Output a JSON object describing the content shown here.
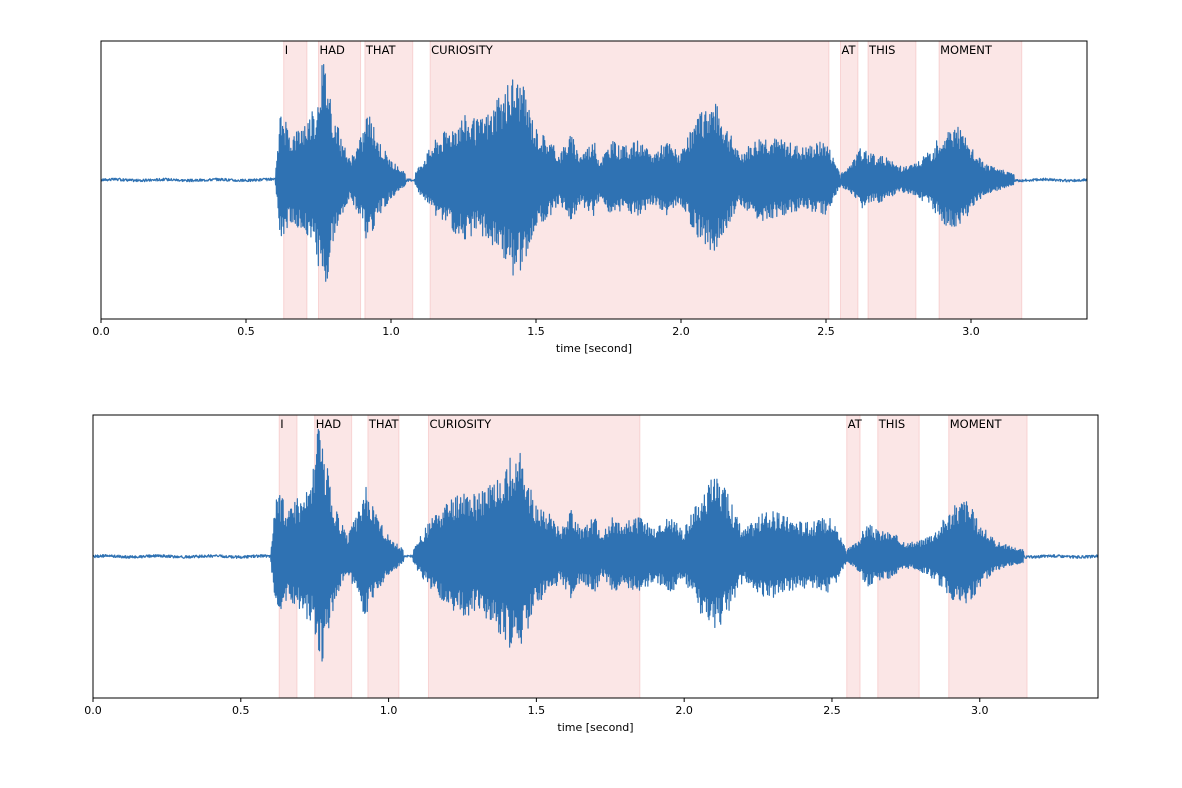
{
  "colors": {
    "waveform": "#2f72b3",
    "word_span": "#f4b6b6",
    "axis": "#000000",
    "background": "#ffffff"
  },
  "chart_data": [
    {
      "type": "area",
      "description": "speech waveform with word alignment spans",
      "xlabel": "time [second]",
      "ylabel": "",
      "xlim": [
        0.0,
        3.4
      ],
      "ylim": [
        -1.0,
        1.0
      ],
      "grid": false,
      "xticks": [
        0.0,
        0.5,
        1.0,
        1.5,
        2.0,
        2.5,
        3.0
      ],
      "xtick_labels": [
        "0.0",
        "0.5",
        "1.0",
        "1.5",
        "2.0",
        "2.5",
        "3.0"
      ],
      "words": [
        {
          "label": "I",
          "start": 0.63,
          "end": 0.71
        },
        {
          "label": "HAD",
          "start": 0.75,
          "end": 0.895
        },
        {
          "label": "THAT",
          "start": 0.91,
          "end": 1.075
        },
        {
          "label": "CURIOSITY",
          "start": 1.135,
          "end": 2.51
        },
        {
          "label": "AT",
          "start": 2.55,
          "end": 2.61
        },
        {
          "label": "THIS",
          "start": 2.645,
          "end": 2.81
        },
        {
          "label": "MOMENT",
          "start": 2.89,
          "end": 3.175
        }
      ],
      "envelope": [
        [
          0.0,
          0.02
        ],
        [
          0.6,
          0.02
        ],
        [
          0.61,
          0.25
        ],
        [
          0.62,
          0.55
        ],
        [
          0.635,
          0.45
        ],
        [
          0.66,
          0.35
        ],
        [
          0.7,
          0.45
        ],
        [
          0.74,
          0.55
        ],
        [
          0.76,
          0.95
        ],
        [
          0.78,
          0.85
        ],
        [
          0.8,
          0.55
        ],
        [
          0.83,
          0.3
        ],
        [
          0.86,
          0.15
        ],
        [
          0.9,
          0.35
        ],
        [
          0.92,
          0.55
        ],
        [
          0.94,
          0.4
        ],
        [
          0.96,
          0.3
        ],
        [
          1.0,
          0.15
        ],
        [
          1.05,
          0.05
        ],
        [
          1.08,
          0.04
        ],
        [
          1.1,
          0.12
        ],
        [
          1.15,
          0.3
        ],
        [
          1.2,
          0.4
        ],
        [
          1.25,
          0.5
        ],
        [
          1.3,
          0.45
        ],
        [
          1.35,
          0.55
        ],
        [
          1.4,
          0.7
        ],
        [
          1.42,
          0.8
        ],
        [
          1.45,
          0.75
        ],
        [
          1.5,
          0.4
        ],
        [
          1.55,
          0.3
        ],
        [
          1.58,
          0.2
        ],
        [
          1.62,
          0.35
        ],
        [
          1.65,
          0.2
        ],
        [
          1.7,
          0.3
        ],
        [
          1.72,
          0.15
        ],
        [
          1.76,
          0.3
        ],
        [
          1.8,
          0.25
        ],
        [
          1.85,
          0.3
        ],
        [
          1.9,
          0.2
        ],
        [
          1.95,
          0.3
        ],
        [
          2.0,
          0.2
        ],
        [
          2.05,
          0.45
        ],
        [
          2.1,
          0.6
        ],
        [
          2.12,
          0.58
        ],
        [
          2.15,
          0.45
        ],
        [
          2.2,
          0.2
        ],
        [
          2.28,
          0.35
        ],
        [
          2.35,
          0.3
        ],
        [
          2.42,
          0.25
        ],
        [
          2.5,
          0.3
        ],
        [
          2.55,
          0.05
        ],
        [
          2.58,
          0.1
        ],
        [
          2.62,
          0.25
        ],
        [
          2.65,
          0.2
        ],
        [
          2.7,
          0.18
        ],
        [
          2.76,
          0.1
        ],
        [
          2.8,
          0.12
        ],
        [
          2.85,
          0.2
        ],
        [
          2.9,
          0.35
        ],
        [
          2.95,
          0.45
        ],
        [
          3.0,
          0.25
        ],
        [
          3.05,
          0.12
        ],
        [
          3.1,
          0.08
        ],
        [
          3.18,
          0.03
        ],
        [
          3.4,
          0.02
        ]
      ]
    },
    {
      "type": "area",
      "description": "speech waveform with word alignment spans",
      "xlabel": "time [second]",
      "ylabel": "",
      "xlim": [
        0.0,
        3.4
      ],
      "ylim": [
        -1.0,
        1.0
      ],
      "grid": false,
      "xticks": [
        0.0,
        0.5,
        1.0,
        1.5,
        2.0,
        2.5,
        3.0
      ],
      "xtick_labels": [
        "0.0",
        "0.5",
        "1.0",
        "1.5",
        "2.0",
        "2.5",
        "3.0"
      ],
      "words": [
        {
          "label": "I",
          "start": 0.63,
          "end": 0.69
        },
        {
          "label": "HAD",
          "start": 0.75,
          "end": 0.875
        },
        {
          "label": "THAT",
          "start": 0.93,
          "end": 1.035
        },
        {
          "label": "CURIOSITY",
          "start": 1.135,
          "end": 1.85
        },
        {
          "label": "AT",
          "start": 2.55,
          "end": 2.595
        },
        {
          "label": "THIS",
          "start": 2.655,
          "end": 2.795
        },
        {
          "label": "MOMENT",
          "start": 2.895,
          "end": 3.16
        }
      ],
      "envelope": [
        [
          0.0,
          0.02
        ],
        [
          0.6,
          0.02
        ],
        [
          0.61,
          0.25
        ],
        [
          0.62,
          0.55
        ],
        [
          0.635,
          0.45
        ],
        [
          0.66,
          0.35
        ],
        [
          0.7,
          0.45
        ],
        [
          0.74,
          0.55
        ],
        [
          0.76,
          0.95
        ],
        [
          0.78,
          0.85
        ],
        [
          0.8,
          0.55
        ],
        [
          0.83,
          0.3
        ],
        [
          0.86,
          0.15
        ],
        [
          0.9,
          0.35
        ],
        [
          0.92,
          0.55
        ],
        [
          0.94,
          0.4
        ],
        [
          0.96,
          0.3
        ],
        [
          1.0,
          0.15
        ],
        [
          1.05,
          0.05
        ],
        [
          1.08,
          0.04
        ],
        [
          1.1,
          0.12
        ],
        [
          1.15,
          0.3
        ],
        [
          1.2,
          0.4
        ],
        [
          1.25,
          0.5
        ],
        [
          1.3,
          0.45
        ],
        [
          1.35,
          0.55
        ],
        [
          1.4,
          0.7
        ],
        [
          1.42,
          0.8
        ],
        [
          1.45,
          0.75
        ],
        [
          1.5,
          0.4
        ],
        [
          1.55,
          0.3
        ],
        [
          1.58,
          0.2
        ],
        [
          1.62,
          0.35
        ],
        [
          1.65,
          0.2
        ],
        [
          1.7,
          0.3
        ],
        [
          1.72,
          0.15
        ],
        [
          1.76,
          0.3
        ],
        [
          1.8,
          0.25
        ],
        [
          1.85,
          0.3
        ],
        [
          1.9,
          0.2
        ],
        [
          1.95,
          0.3
        ],
        [
          2.0,
          0.2
        ],
        [
          2.05,
          0.45
        ],
        [
          2.1,
          0.6
        ],
        [
          2.12,
          0.58
        ],
        [
          2.15,
          0.45
        ],
        [
          2.2,
          0.2
        ],
        [
          2.28,
          0.35
        ],
        [
          2.35,
          0.3
        ],
        [
          2.42,
          0.25
        ],
        [
          2.5,
          0.3
        ],
        [
          2.55,
          0.05
        ],
        [
          2.58,
          0.1
        ],
        [
          2.62,
          0.25
        ],
        [
          2.65,
          0.2
        ],
        [
          2.7,
          0.18
        ],
        [
          2.76,
          0.1
        ],
        [
          2.8,
          0.12
        ],
        [
          2.85,
          0.2
        ],
        [
          2.9,
          0.35
        ],
        [
          2.95,
          0.45
        ],
        [
          3.0,
          0.25
        ],
        [
          3.05,
          0.12
        ],
        [
          3.1,
          0.08
        ],
        [
          3.18,
          0.03
        ],
        [
          3.4,
          0.02
        ]
      ]
    }
  ]
}
